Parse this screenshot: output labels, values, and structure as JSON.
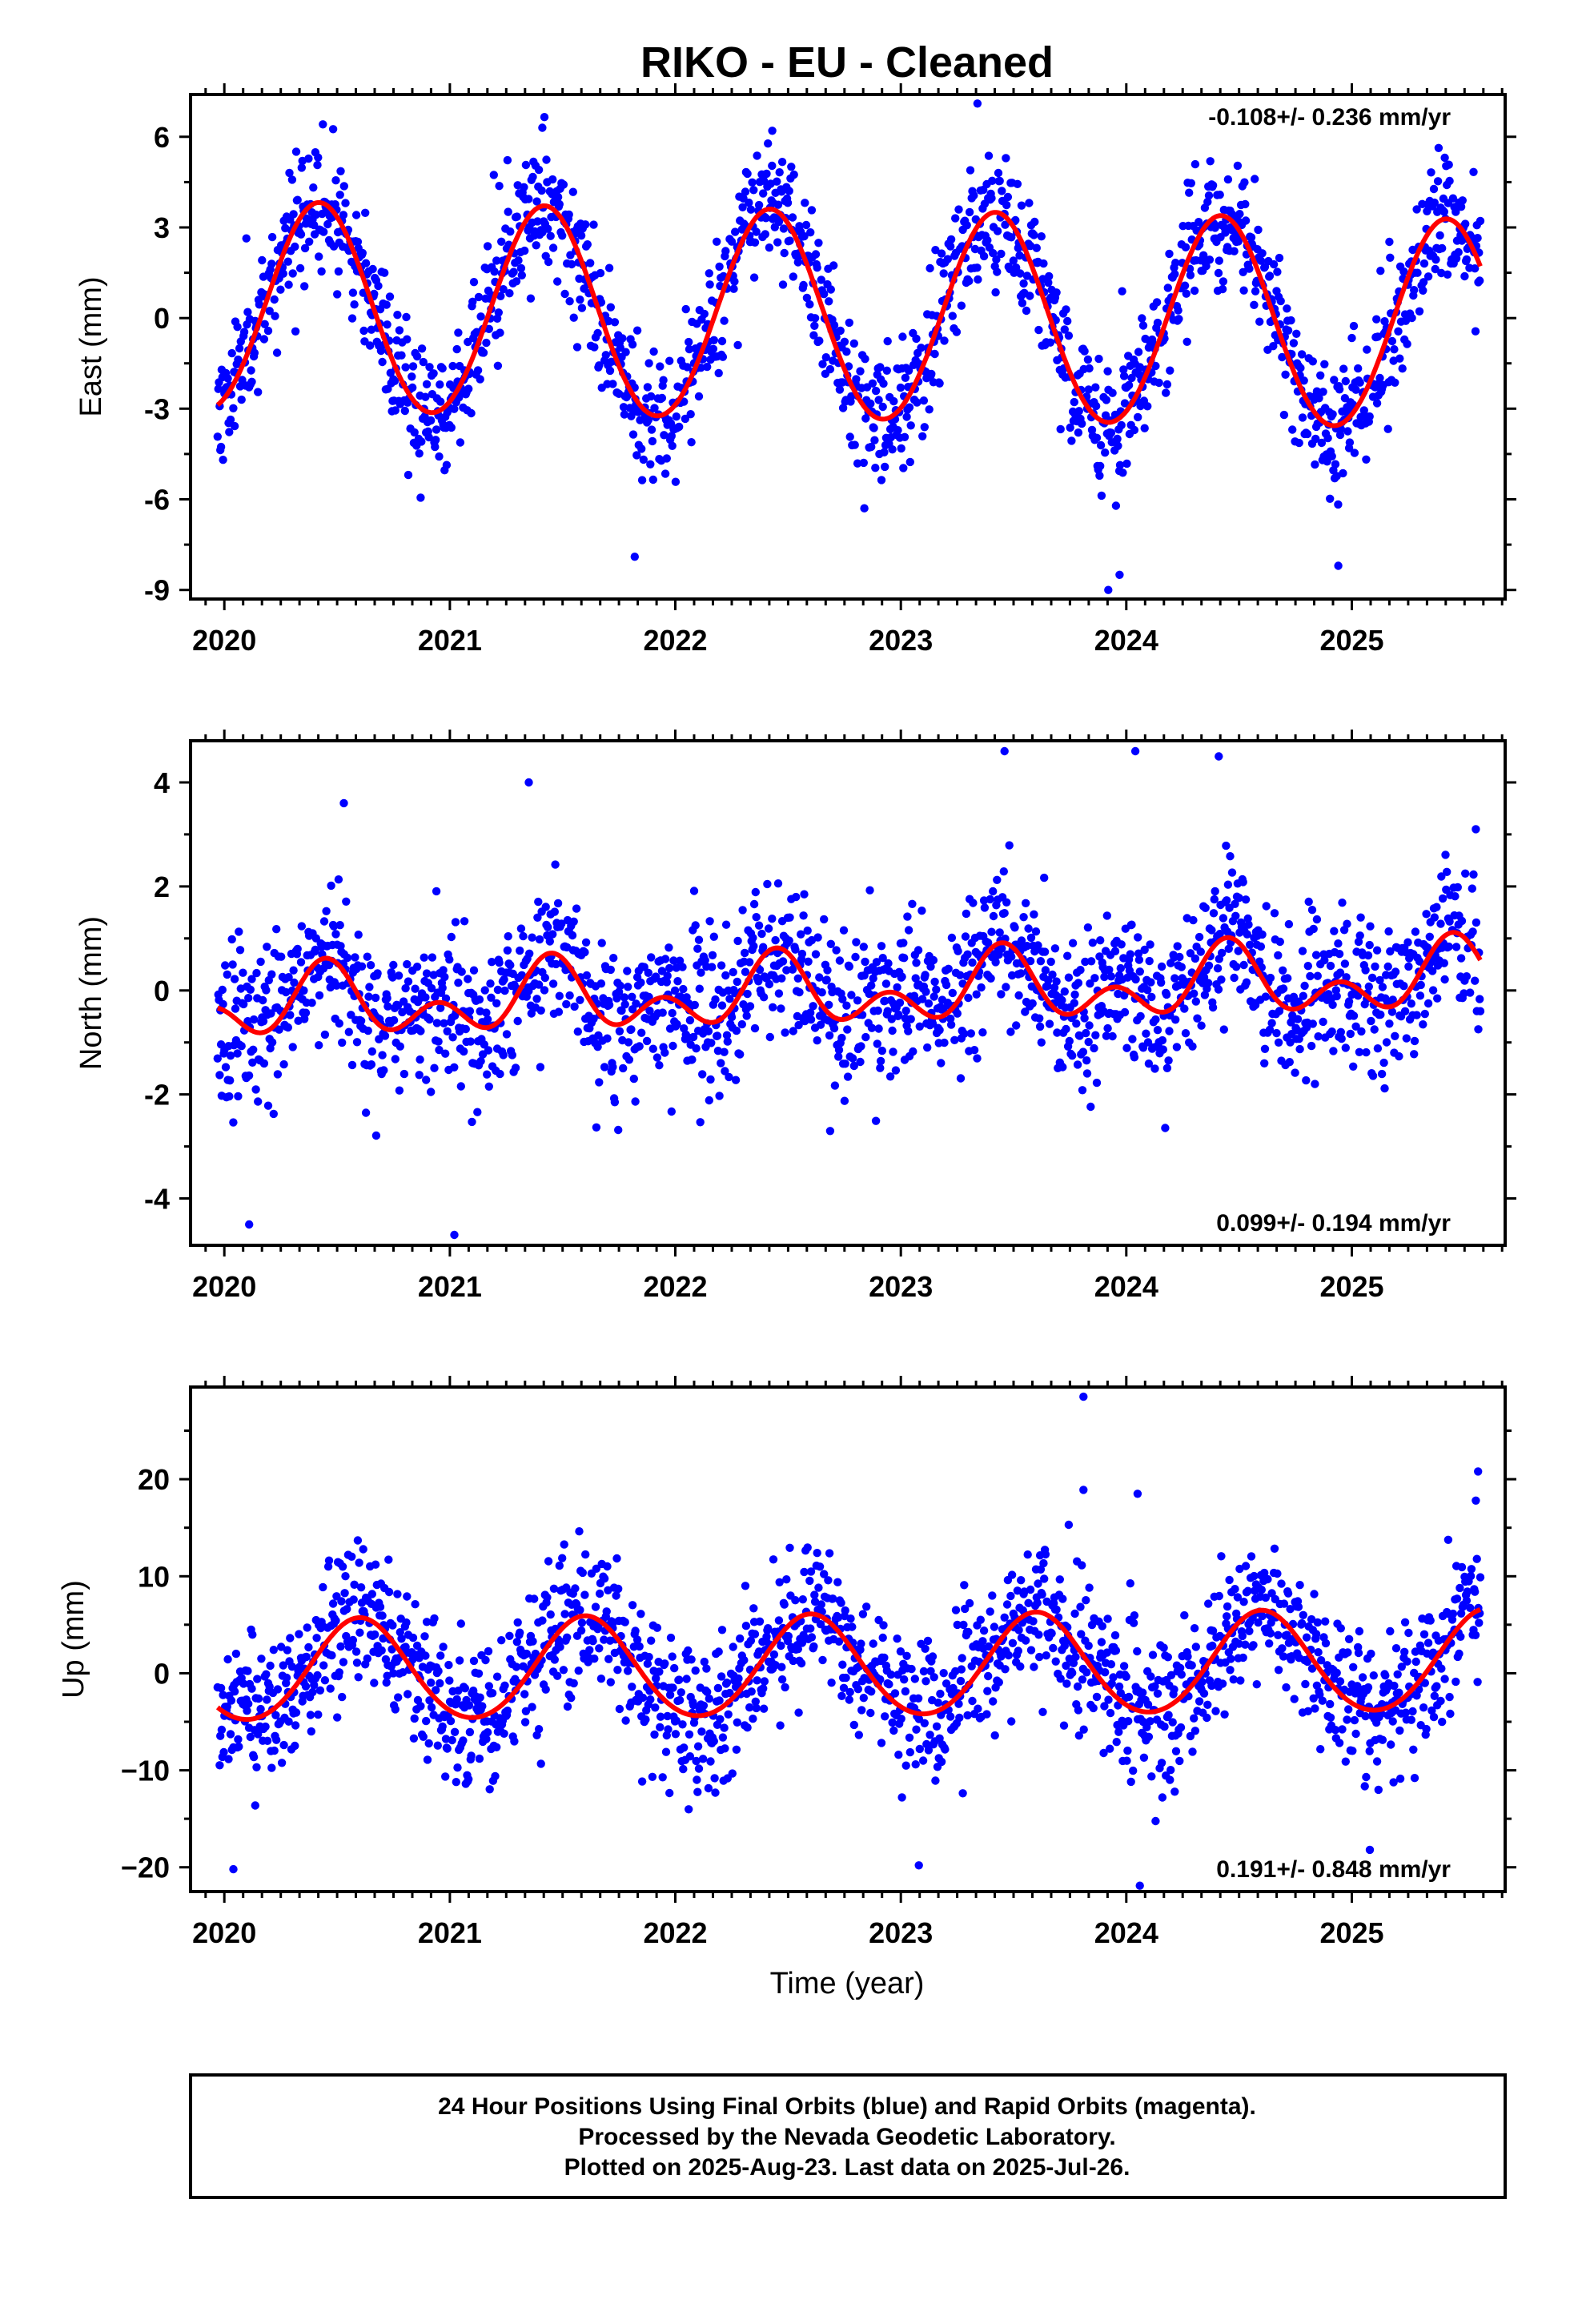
{
  "title": "RIKO  - EU - Cleaned",
  "xlabel": "Time (year)",
  "footer": {
    "line1": "24 Hour Positions Using Final Orbits (blue) and Rapid Orbits (magenta).",
    "line2": "Processed by the Nevada Geodetic Laboratory.",
    "line3": "Plotted on 2025-Aug-23. Last data on 2025-Jul-26."
  },
  "colors": {
    "points": "#0000ff",
    "fit": "#ff0000",
    "frame": "#000000"
  },
  "chart_data": [
    {
      "type": "scatter",
      "ylabel": "East (mm)",
      "rate_text": "-0.108+/- 0.236 mm/yr",
      "rate_position": "top-right",
      "xlim": [
        2019.85,
        2025.68
      ],
      "ylim": [
        -9.3,
        7.4
      ],
      "x_ticks": [
        2020,
        2021,
        2022,
        2023,
        2024,
        2025
      ],
      "x_tick_labels": [
        "2020",
        "2021",
        "2022",
        "2023",
        "2024",
        "2025"
      ],
      "y_ticks": [
        -9,
        -6,
        -3,
        0,
        3,
        6
      ],
      "y_tick_labels": [
        "-9",
        "-6",
        "-3",
        "0",
        "3",
        "6"
      ],
      "series": [
        {
          "kind": "daily-positions",
          "x_range": [
            2019.97,
            2025.57
          ],
          "points_per_year": 330,
          "seed": 11,
          "spread_mm": 1.1,
          "outliers": [
            [
              2021.82,
              -7.9
            ],
            [
              2023.92,
              -9.0
            ],
            [
              2023.97,
              -8.5
            ],
            [
              2024.94,
              -8.2
            ],
            [
              2023.34,
              7.1
            ],
            [
              2022.43,
              6.2
            ],
            [
              2021.41,
              6.3
            ]
          ]
        },
        {
          "kind": "model-fit",
          "annual_amplitude_mm": 3.45,
          "annual_peak_year": 2020.42,
          "semiannual_amplitude_mm": 0.1,
          "trend_mm_per_yr": -0.108,
          "offset_mm": 0.02,
          "ref_year": 2022.77
        }
      ]
    },
    {
      "type": "scatter",
      "ylabel": "North (mm)",
      "rate_text": "0.099+/- 0.194 mm/yr",
      "rate_position": "bottom-right",
      "xlim": [
        2019.85,
        2025.68
      ],
      "ylim": [
        -4.9,
        4.8
      ],
      "x_ticks": [
        2020,
        2021,
        2022,
        2023,
        2024,
        2025
      ],
      "x_tick_labels": [
        "2020",
        "2021",
        "2022",
        "2023",
        "2024",
        "2025"
      ],
      "y_ticks": [
        -4,
        -2,
        0,
        2,
        4
      ],
      "y_tick_labels": [
        "-4",
        "-2",
        "0",
        "2",
        "4"
      ],
      "series": [
        {
          "kind": "daily-positions",
          "x_range": [
            2019.97,
            2025.57
          ],
          "points_per_year": 330,
          "seed": 23,
          "spread_mm": 0.75,
          "outliers": [
            [
              2021.02,
              -4.7
            ],
            [
              2020.11,
              -4.5
            ],
            [
              2021.35,
              4.0
            ],
            [
              2023.46,
              4.6
            ],
            [
              2024.04,
              4.6
            ],
            [
              2024.41,
              4.5
            ],
            [
              2025.55,
              3.1
            ],
            [
              2020.53,
              3.6
            ]
          ]
        },
        {
          "kind": "model-fit",
          "annual_amplitude_mm": 0.45,
          "annual_peak_year": 2020.45,
          "semiannual_amplitude_mm": 0.45,
          "semiannual_peak_year": 2020.45,
          "trend_mm_per_yr": 0.099,
          "offset_mm": -0.05,
          "ref_year": 2022.77
        }
      ]
    },
    {
      "type": "scatter",
      "ylabel": "Up (mm)",
      "rate_text": "0.191+/- 0.848 mm/yr",
      "rate_position": "bottom-right",
      "xlim": [
        2019.85,
        2025.68
      ],
      "ylim": [
        -22.5,
        29.5
      ],
      "x_ticks": [
        2020,
        2021,
        2022,
        2023,
        2024,
        2025
      ],
      "x_tick_labels": [
        "2020",
        "2021",
        "2022",
        "2023",
        "2024",
        "2025"
      ],
      "y_ticks": [
        -20,
        -10,
        0,
        10,
        20
      ],
      "y_tick_labels": [
        "−20",
        "−10",
        "0",
        "10",
        "20"
      ],
      "series": [
        {
          "kind": "daily-positions",
          "x_range": [
            2019.97,
            2025.57
          ],
          "points_per_year": 330,
          "seed": 37,
          "spread_mm": 3.8,
          "outliers": [
            [
              2023.81,
              28.5
            ],
            [
              2025.56,
              20.8
            ],
            [
              2025.55,
              17.8
            ],
            [
              2023.81,
              18.9
            ],
            [
              2024.05,
              18.5
            ],
            [
              2020.04,
              -20.2
            ],
            [
              2024.06,
              -21.9
            ],
            [
              2023.08,
              -19.8
            ],
            [
              2025.08,
              -18.2
            ]
          ]
        },
        {
          "kind": "model-fit",
          "annual_amplitude_mm": 5.2,
          "annual_peak_year": 2020.6,
          "semiannual_amplitude_mm": 0.35,
          "trend_mm_per_yr": 0.191,
          "offset_mm": 0.6,
          "ref_year": 2022.77
        }
      ]
    }
  ]
}
